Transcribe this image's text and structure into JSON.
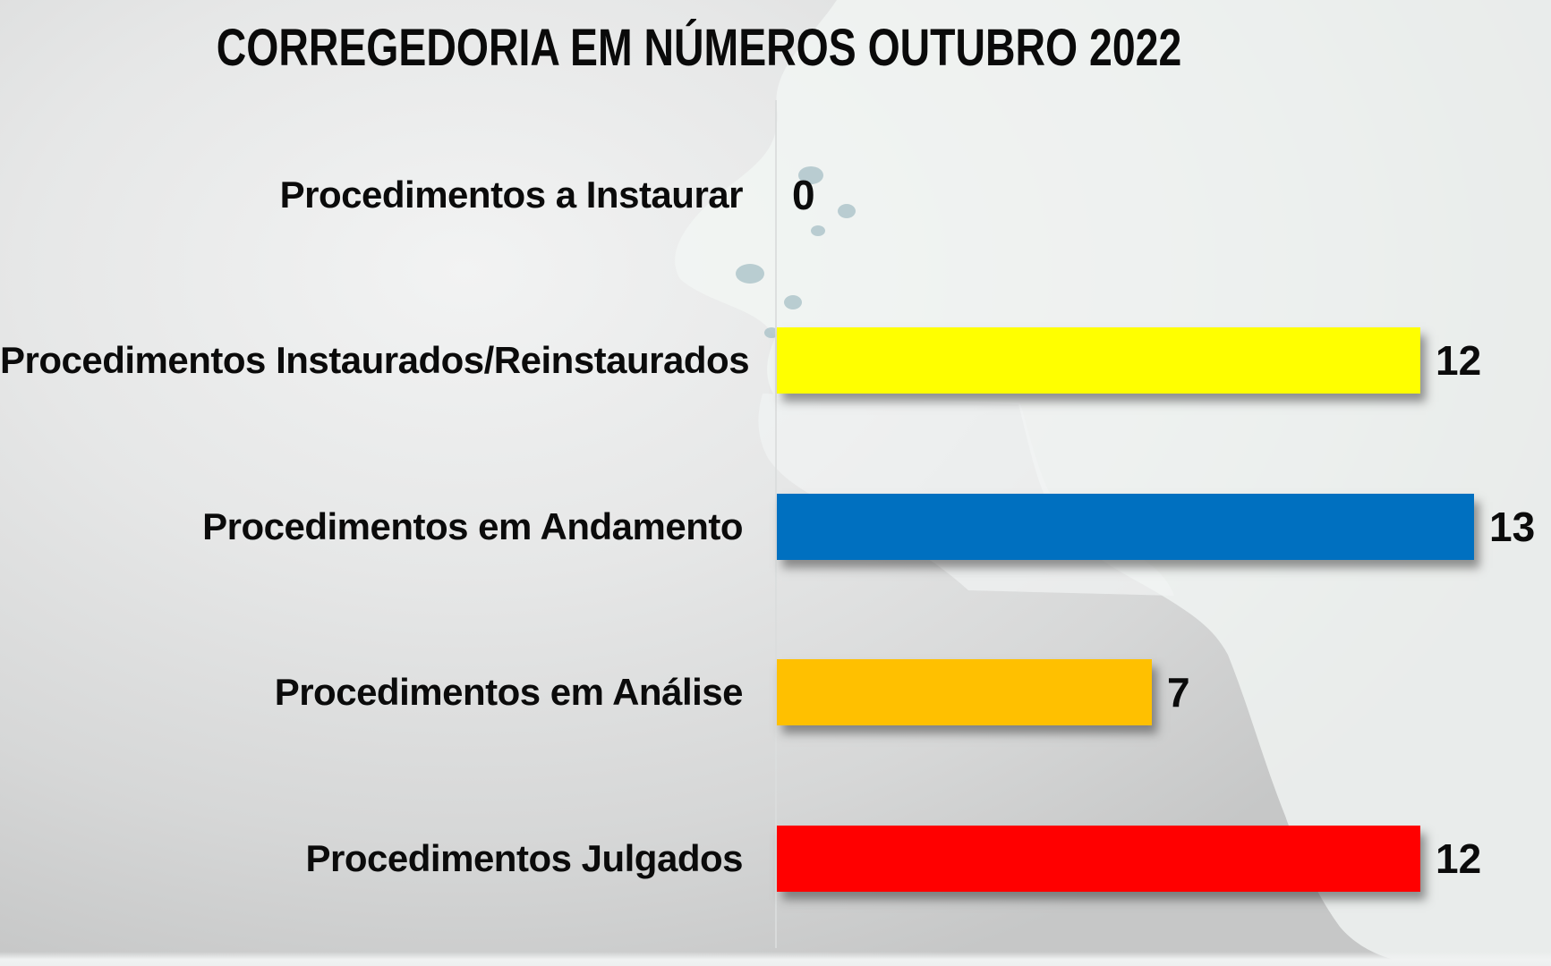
{
  "chart_data": {
    "type": "bar",
    "orientation": "horizontal",
    "title": "CORREGEDORIA EM NÚMEROS OUTUBRO 2022",
    "categories": [
      "Procedimentos a Instaurar",
      "Procedimentos Instaurados/Reinstaurados",
      "Procedimentos em Andamento",
      "Procedimentos em Análise",
      "Procedimentos Julgados"
    ],
    "values": [
      0,
      12,
      13,
      7,
      12
    ],
    "value_labels": [
      "0",
      "12",
      "13",
      "7",
      "12"
    ],
    "bar_colors": [
      null,
      "#FFFF00",
      "#0070C0",
      "#FFC000",
      "#FF0000"
    ],
    "xlim": [
      0,
      13
    ],
    "legend": "none",
    "gridlines": "none",
    "data_labels": "outside-end",
    "label_color": "#0b0b0b",
    "background": {
      "page_gradient": [
        "#f2f3f3",
        "#c6c7c7"
      ],
      "halftone_dot_color": "#a7c0c6"
    }
  }
}
